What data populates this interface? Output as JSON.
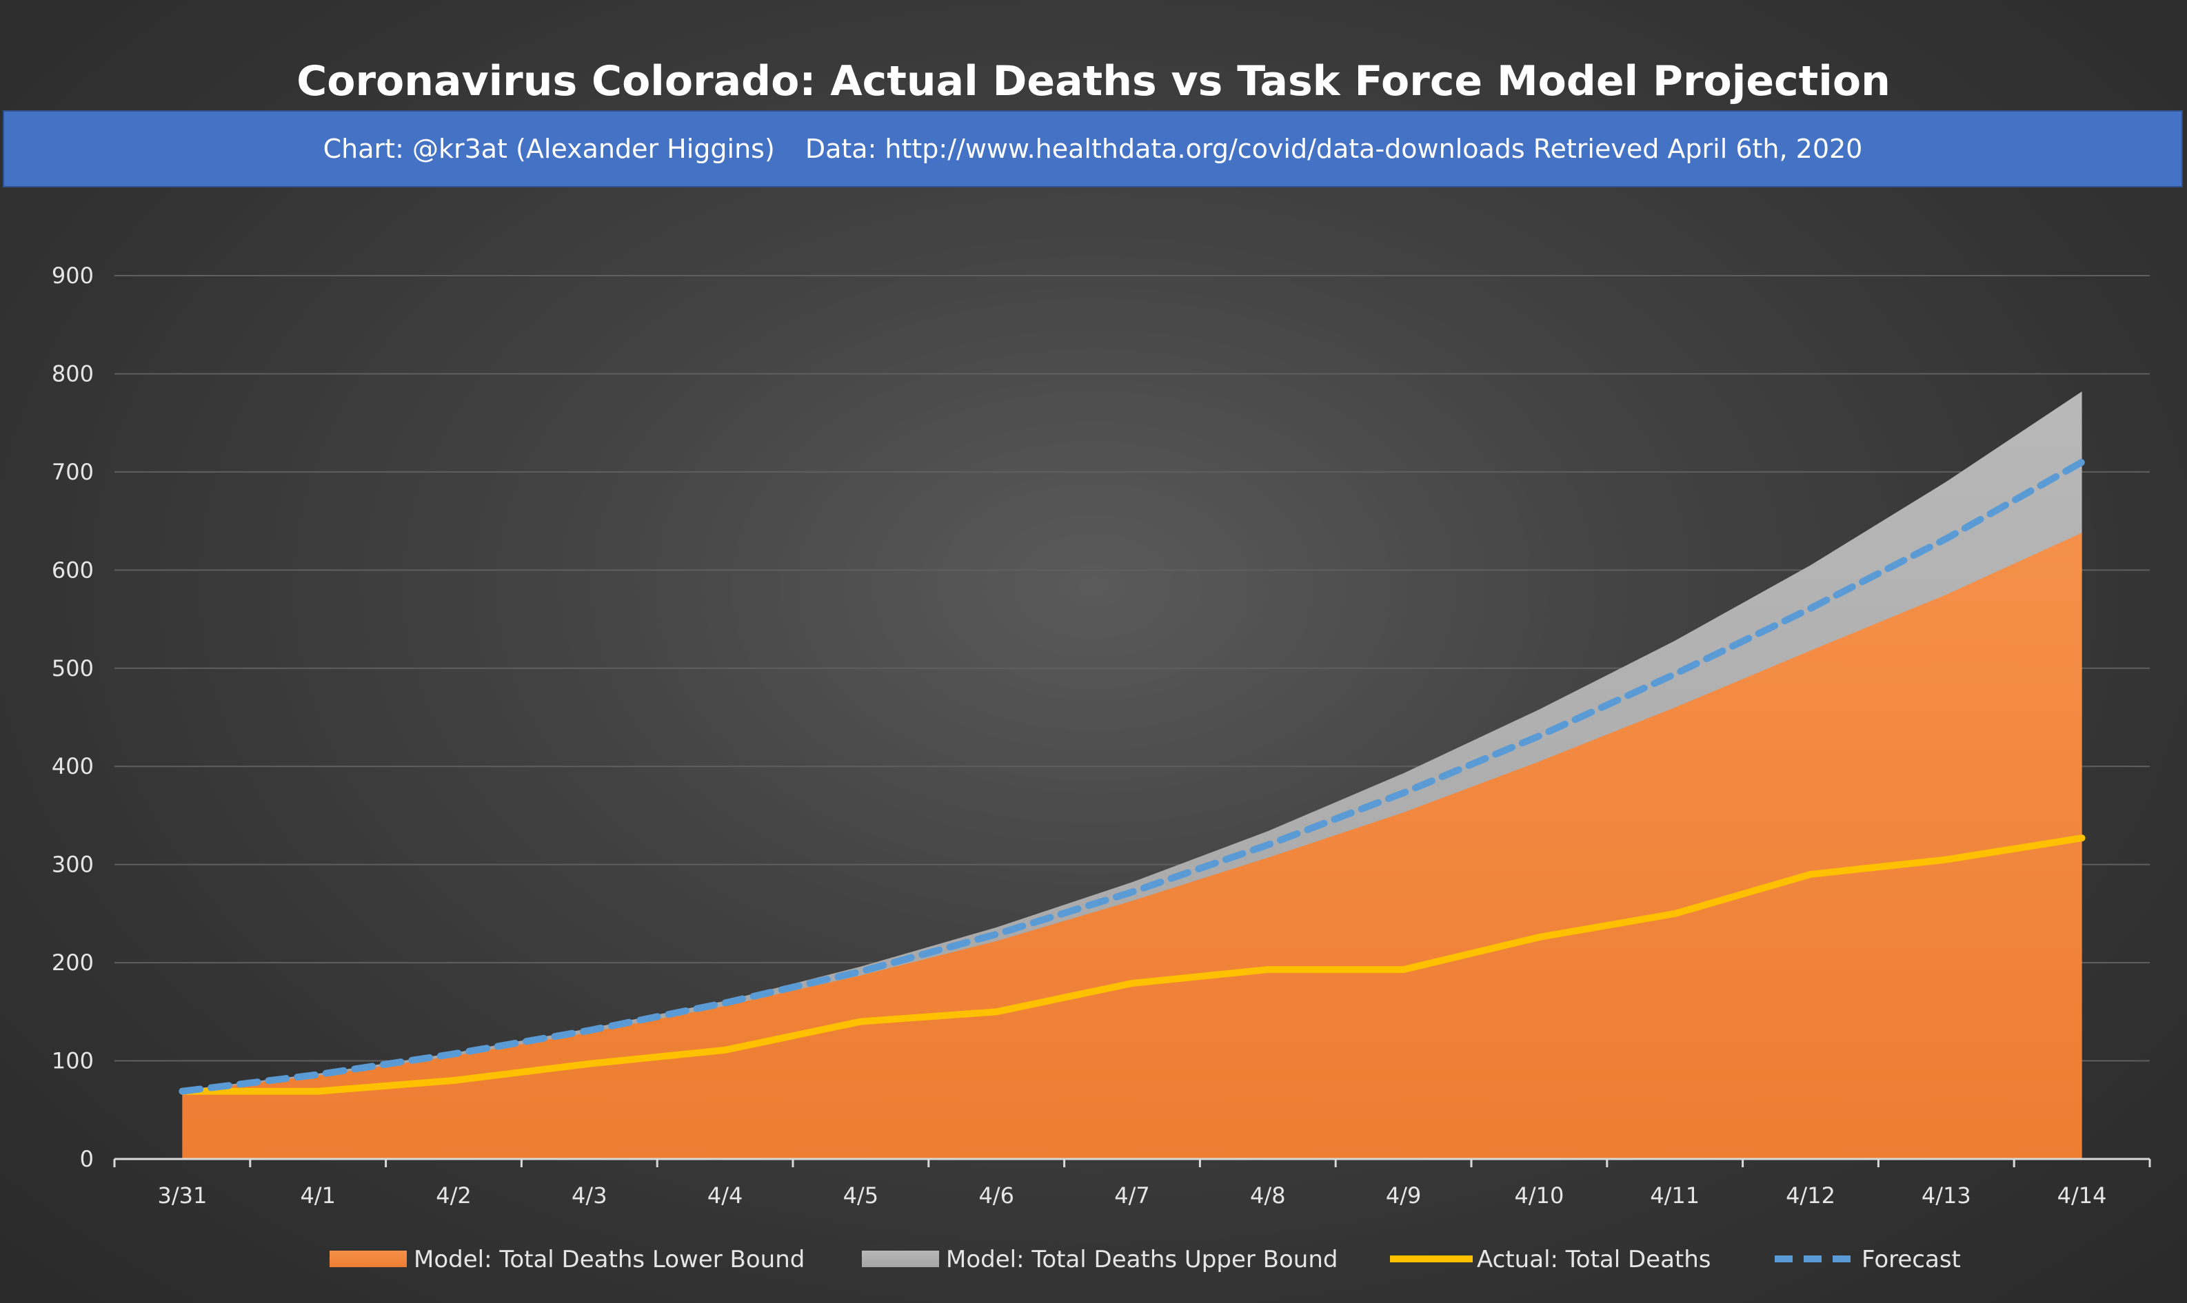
{
  "chart_data": {
    "type": "area",
    "title": "Coronavirus Colorado: Actual Deaths vs Task Force Model Projection",
    "subtitle_credit": "Chart: @kr3at (Alexander Higgins)",
    "subtitle_source": "Data: http://www.healthdata.org/covid/data-downloads Retrieved April 6th, 2020",
    "xlabel": "",
    "ylabel": "",
    "categories": [
      "3/31",
      "4/1",
      "4/2",
      "4/3",
      "4/4",
      "4/5",
      "4/6",
      "4/7",
      "4/8",
      "4/9",
      "4/10",
      "4/11",
      "4/12",
      "4/13",
      "4/14"
    ],
    "ylim": [
      0,
      900
    ],
    "yticks": [
      0,
      100,
      200,
      300,
      400,
      500,
      600,
      700,
      800,
      900
    ],
    "grid": true,
    "legend_position": "bottom",
    "series": [
      {
        "name": "Model: Total Deaths Lower Bound",
        "kind": "area",
        "color": "#ed7d31",
        "values": [
          69,
          85,
          105,
          129,
          156,
          187,
          222,
          263,
          307,
          353,
          405,
          460,
          518,
          575,
          638
        ]
      },
      {
        "name": "Model: Total Deaths Upper Bound",
        "kind": "area",
        "color": "#a5a5a5",
        "values": [
          70,
          87,
          108,
          133,
          161,
          196,
          236,
          282,
          334,
          393,
          458,
          528,
          605,
          690,
          782
        ]
      },
      {
        "name": "Actual: Total Deaths",
        "kind": "line",
        "color": "#ffc000",
        "values": [
          69,
          69,
          80,
          97,
          111,
          140,
          150,
          179,
          193,
          193,
          226,
          250,
          290,
          305,
          327
        ]
      },
      {
        "name": "Forecast",
        "kind": "dashed-line",
        "color": "#5b9bd5",
        "values": [
          69,
          86,
          107,
          131,
          159,
          191,
          229,
          272,
          320,
          373,
          431,
          494,
          561,
          632,
          710
        ]
      }
    ]
  }
}
